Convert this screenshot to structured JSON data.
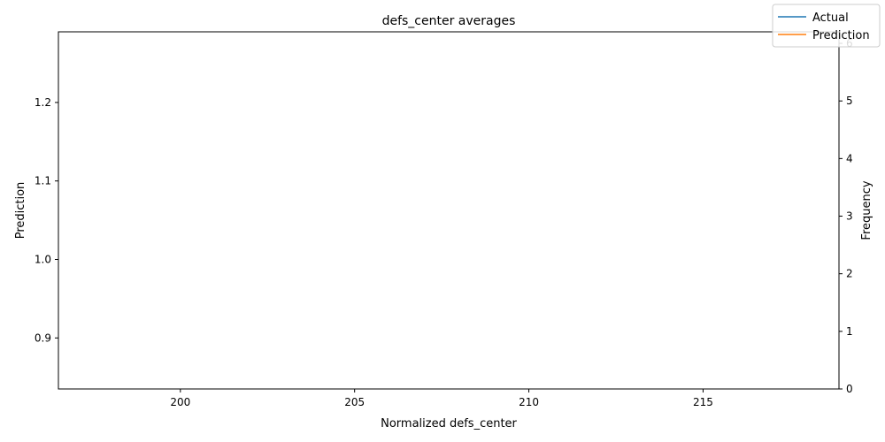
{
  "chart_data": {
    "type": "line",
    "title": "defs_center averages",
    "xlabel": "Normalized defs_center",
    "ylabel_left": "Prediction",
    "ylabel_right": "Frequency",
    "xlim": [
      196.5,
      218.9
    ],
    "ylim_left": [
      0.835,
      1.29
    ],
    "ylim_right": [
      0,
      6.2
    ],
    "x_ticks": [
      200,
      205,
      210,
      215
    ],
    "y_ticks_left": [
      0.9,
      1.0,
      1.1,
      1.2
    ],
    "y_ticks_right": [
      0,
      1,
      2,
      3,
      4,
      5,
      6
    ],
    "grid": false,
    "legend_position": "top-right",
    "series": [
      {
        "name": "Actual",
        "color": "#1f77b4",
        "x": [],
        "y": []
      },
      {
        "name": "Prediction",
        "color": "#ff7f0e",
        "x": [],
        "y": []
      }
    ]
  }
}
